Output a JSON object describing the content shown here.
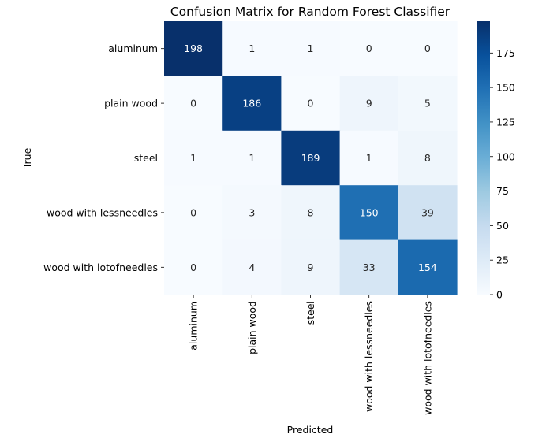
{
  "chart_data": {
    "type": "heatmap",
    "title": "Confusion Matrix for Random Forest Classifier",
    "xlabel": "Predicted",
    "ylabel": "True",
    "x_categories": [
      "aluminum",
      "plain wood",
      "steel",
      "wood with lessneedles",
      "wood with lotofneedles"
    ],
    "y_categories": [
      "aluminum",
      "plain wood",
      "steel",
      "wood with lessneedles",
      "wood with lotofneedles"
    ],
    "values": [
      [
        198,
        1,
        1,
        0,
        0
      ],
      [
        0,
        186,
        0,
        9,
        5
      ],
      [
        1,
        1,
        189,
        1,
        8
      ],
      [
        0,
        3,
        8,
        150,
        39
      ],
      [
        0,
        4,
        9,
        33,
        154
      ]
    ],
    "colorbar": {
      "min": 0,
      "max": 198,
      "ticks": [
        0,
        25,
        50,
        75,
        100,
        125,
        150,
        175
      ],
      "colormap": "Blues"
    },
    "annotations": true,
    "grid": false
  }
}
